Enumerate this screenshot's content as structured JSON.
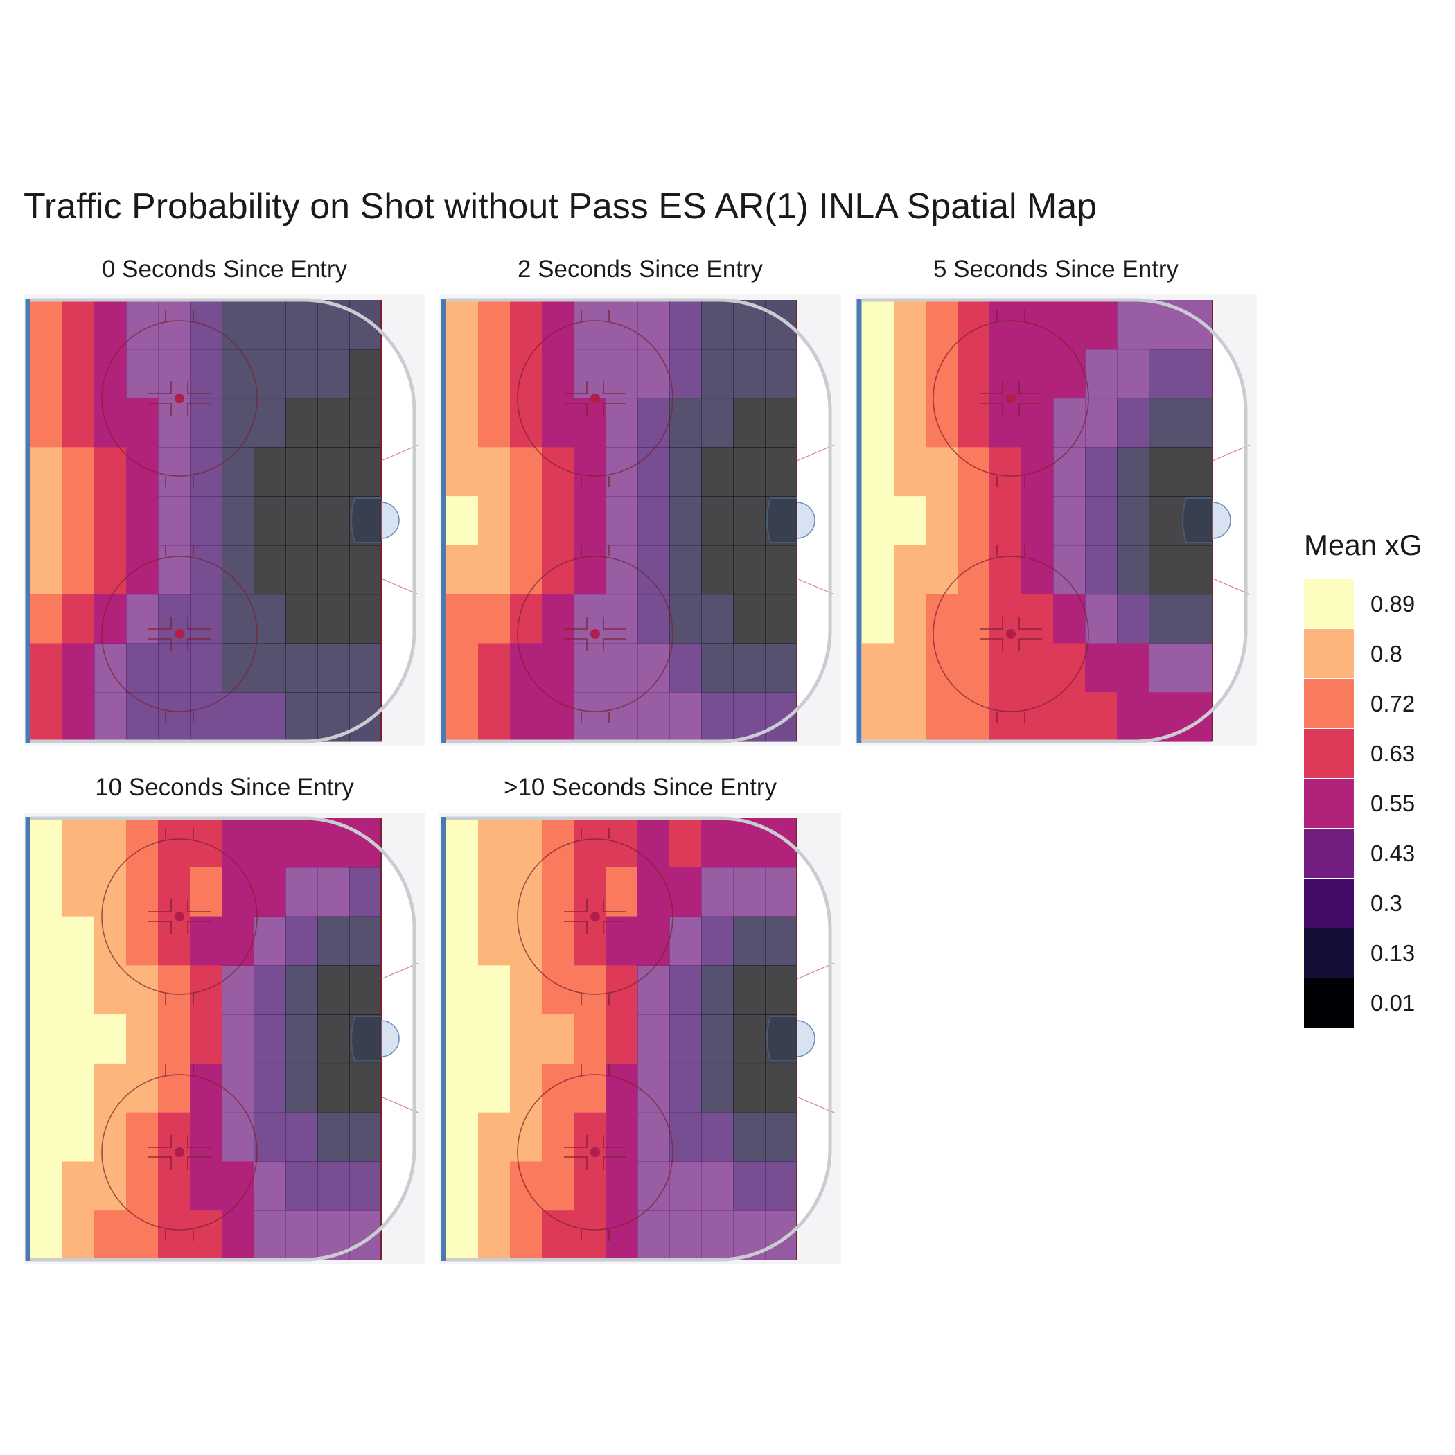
{
  "chart_data": {
    "type": "heatmap",
    "title": "Traffic Probability on Shot without Pass ES AR(1) INLA Spatial Map",
    "legend": {
      "title": "Mean xG",
      "position": "right",
      "breaks": [
        0.89,
        0.8,
        0.72,
        0.63,
        0.55,
        0.43,
        0.3,
        0.13,
        0.01
      ],
      "labels": [
        "0.89",
        "0.8",
        "0.72",
        "0.63",
        "0.55",
        "0.43",
        "0.3",
        "0.13",
        "0.01"
      ],
      "colors": [
        "#FCFDBF",
        "#FEB57C",
        "#F97A5D",
        "#DD3A5A",
        "#B1237A",
        "#721F81",
        "#440A68",
        "#150E37",
        "#000004"
      ]
    },
    "color_scale": "magma",
    "grid": false,
    "panels": [
      {
        "label": "0 Seconds Since Entry",
        "rows": [
          [
            0.72,
            0.63,
            0.55,
            0.43,
            0.43,
            0.3,
            0.13,
            0.13,
            0.13,
            0.13,
            0.13
          ],
          [
            0.72,
            0.63,
            0.55,
            0.43,
            0.43,
            0.3,
            0.13,
            0.13,
            0.13,
            0.13,
            0.01
          ],
          [
            0.72,
            0.63,
            0.55,
            0.55,
            0.43,
            0.3,
            0.13,
            0.13,
            0.01,
            0.01,
            0.01
          ],
          [
            0.8,
            0.72,
            0.63,
            0.55,
            0.43,
            0.3,
            0.13,
            0.01,
            0.01,
            0.01,
            0.01
          ],
          [
            0.8,
            0.72,
            0.63,
            0.55,
            0.43,
            0.3,
            0.13,
            0.01,
            0.01,
            0.01,
            0.01
          ],
          [
            0.8,
            0.72,
            0.63,
            0.55,
            0.43,
            0.3,
            0.13,
            0.01,
            0.01,
            0.01,
            0.01
          ],
          [
            0.72,
            0.63,
            0.55,
            0.43,
            0.3,
            0.3,
            0.13,
            0.13,
            0.01,
            0.01,
            0.01
          ],
          [
            0.63,
            0.55,
            0.43,
            0.3,
            0.3,
            0.3,
            0.13,
            0.13,
            0.13,
            0.13,
            0.13
          ],
          [
            0.63,
            0.55,
            0.43,
            0.3,
            0.3,
            0.3,
            0.3,
            0.3,
            0.13,
            0.13,
            0.13
          ]
        ]
      },
      {
        "label": "2 Seconds Since Entry",
        "rows": [
          [
            0.8,
            0.72,
            0.63,
            0.55,
            0.43,
            0.43,
            0.43,
            0.3,
            0.13,
            0.13,
            0.13
          ],
          [
            0.8,
            0.72,
            0.63,
            0.55,
            0.43,
            0.43,
            0.43,
            0.3,
            0.13,
            0.13,
            0.13
          ],
          [
            0.8,
            0.72,
            0.63,
            0.55,
            0.55,
            0.43,
            0.3,
            0.13,
            0.13,
            0.01,
            0.01
          ],
          [
            0.8,
            0.8,
            0.72,
            0.63,
            0.55,
            0.43,
            0.3,
            0.13,
            0.01,
            0.01,
            0.01
          ],
          [
            0.89,
            0.8,
            0.72,
            0.63,
            0.55,
            0.43,
            0.3,
            0.13,
            0.01,
            0.01,
            0.01
          ],
          [
            0.8,
            0.8,
            0.72,
            0.63,
            0.55,
            0.43,
            0.3,
            0.13,
            0.01,
            0.01,
            0.01
          ],
          [
            0.72,
            0.72,
            0.63,
            0.55,
            0.43,
            0.43,
            0.3,
            0.13,
            0.13,
            0.01,
            0.01
          ],
          [
            0.72,
            0.63,
            0.55,
            0.55,
            0.43,
            0.43,
            0.43,
            0.3,
            0.13,
            0.13,
            0.13
          ],
          [
            0.72,
            0.63,
            0.55,
            0.55,
            0.43,
            0.43,
            0.43,
            0.43,
            0.3,
            0.3,
            0.3
          ]
        ]
      },
      {
        "label": "5 Seconds Since Entry",
        "rows": [
          [
            0.89,
            0.8,
            0.72,
            0.63,
            0.55,
            0.55,
            0.55,
            0.55,
            0.43,
            0.43,
            0.43
          ],
          [
            0.89,
            0.8,
            0.72,
            0.63,
            0.55,
            0.55,
            0.55,
            0.43,
            0.43,
            0.3,
            0.3
          ],
          [
            0.89,
            0.8,
            0.72,
            0.63,
            0.55,
            0.55,
            0.43,
            0.43,
            0.3,
            0.13,
            0.13
          ],
          [
            0.89,
            0.8,
            0.8,
            0.72,
            0.63,
            0.55,
            0.43,
            0.3,
            0.13,
            0.01,
            0.01
          ],
          [
            0.89,
            0.89,
            0.8,
            0.72,
            0.63,
            0.55,
            0.43,
            0.3,
            0.13,
            0.01,
            0.01
          ],
          [
            0.89,
            0.8,
            0.8,
            0.72,
            0.63,
            0.55,
            0.43,
            0.3,
            0.13,
            0.01,
            0.01
          ],
          [
            0.89,
            0.8,
            0.72,
            0.72,
            0.63,
            0.63,
            0.55,
            0.43,
            0.3,
            0.13,
            0.13
          ],
          [
            0.8,
            0.8,
            0.72,
            0.72,
            0.63,
            0.63,
            0.63,
            0.55,
            0.55,
            0.43,
            0.43
          ],
          [
            0.8,
            0.8,
            0.72,
            0.72,
            0.63,
            0.63,
            0.63,
            0.63,
            0.55,
            0.55,
            0.55
          ]
        ]
      },
      {
        "label": "10 Seconds Since Entry",
        "rows": [
          [
            0.89,
            0.8,
            0.8,
            0.72,
            0.63,
            0.63,
            0.55,
            0.55,
            0.55,
            0.55,
            0.55
          ],
          [
            0.89,
            0.8,
            0.8,
            0.72,
            0.63,
            0.72,
            0.55,
            0.55,
            0.43,
            0.43,
            0.3
          ],
          [
            0.89,
            0.89,
            0.8,
            0.72,
            0.63,
            0.55,
            0.55,
            0.43,
            0.3,
            0.13,
            0.13
          ],
          [
            0.89,
            0.89,
            0.8,
            0.8,
            0.72,
            0.63,
            0.43,
            0.3,
            0.13,
            0.01,
            0.01
          ],
          [
            0.89,
            0.89,
            0.89,
            0.8,
            0.72,
            0.63,
            0.43,
            0.3,
            0.13,
            0.01,
            0.01
          ],
          [
            0.89,
            0.89,
            0.8,
            0.8,
            0.72,
            0.55,
            0.43,
            0.3,
            0.13,
            0.01,
            0.01
          ],
          [
            0.89,
            0.89,
            0.8,
            0.72,
            0.63,
            0.55,
            0.43,
            0.3,
            0.3,
            0.13,
            0.13
          ],
          [
            0.89,
            0.8,
            0.8,
            0.72,
            0.63,
            0.55,
            0.55,
            0.43,
            0.3,
            0.3,
            0.3
          ],
          [
            0.89,
            0.8,
            0.72,
            0.72,
            0.63,
            0.63,
            0.55,
            0.43,
            0.43,
            0.43,
            0.43
          ]
        ]
      },
      {
        "label": ">10 Seconds Since Entry",
        "rows": [
          [
            0.89,
            0.8,
            0.8,
            0.72,
            0.63,
            0.63,
            0.55,
            0.63,
            0.55,
            0.55,
            0.55
          ],
          [
            0.89,
            0.8,
            0.8,
            0.72,
            0.63,
            0.72,
            0.55,
            0.55,
            0.43,
            0.43,
            0.43
          ],
          [
            0.89,
            0.8,
            0.8,
            0.72,
            0.63,
            0.55,
            0.55,
            0.43,
            0.3,
            0.13,
            0.13
          ],
          [
            0.89,
            0.89,
            0.8,
            0.72,
            0.72,
            0.63,
            0.43,
            0.3,
            0.13,
            0.01,
            0.01
          ],
          [
            0.89,
            0.89,
            0.8,
            0.8,
            0.72,
            0.63,
            0.43,
            0.3,
            0.13,
            0.01,
            0.01
          ],
          [
            0.89,
            0.89,
            0.8,
            0.72,
            0.72,
            0.55,
            0.43,
            0.3,
            0.13,
            0.01,
            0.01
          ],
          [
            0.89,
            0.8,
            0.8,
            0.72,
            0.63,
            0.55,
            0.43,
            0.3,
            0.3,
            0.13,
            0.13
          ],
          [
            0.89,
            0.8,
            0.72,
            0.72,
            0.63,
            0.55,
            0.43,
            0.43,
            0.43,
            0.3,
            0.3
          ],
          [
            0.89,
            0.8,
            0.72,
            0.63,
            0.63,
            0.55,
            0.43,
            0.43,
            0.43,
            0.43,
            0.43
          ]
        ]
      }
    ]
  }
}
